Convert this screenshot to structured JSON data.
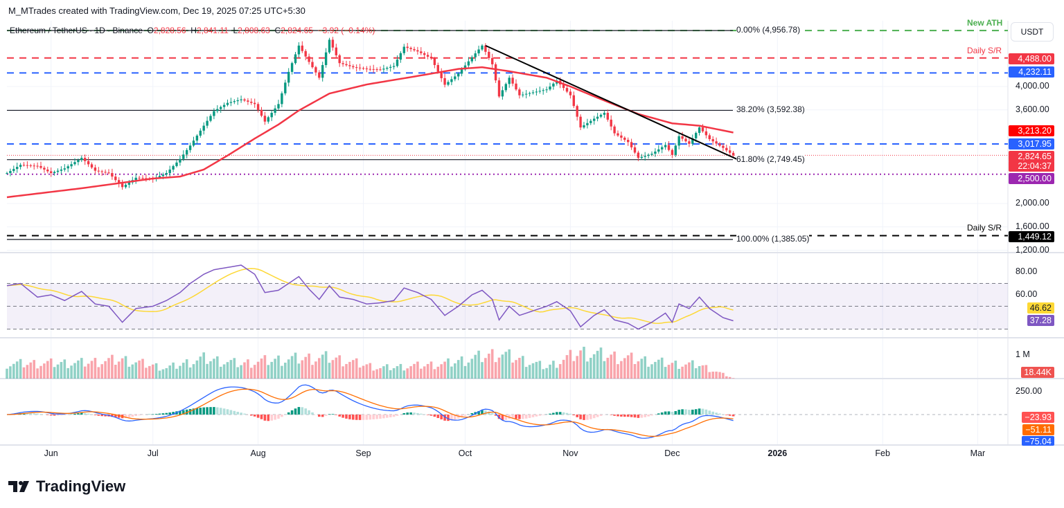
{
  "header": {
    "credit": "M_MTrades created with TradingView.com, Dec 19, 2025 07:25 UTC+5:30",
    "symbol": "Ethereum / TetherUS · 1D · Binance",
    "o_label": "O",
    "o": "2,828.56",
    "h_label": "H",
    "h": "2,841.11",
    "l_label": "L",
    "l": "2,808.63",
    "c_label": "C",
    "c": "2,824.65",
    "change": "−3.92 (−0.14%)"
  },
  "currency": "USDT",
  "footer": {
    "logo_text": "TradingView"
  },
  "colors": {
    "up": "#089981",
    "down": "#f23645",
    "ma": "#f23645",
    "rsi": "#7e57c2",
    "rsi_ma": "#fdd835",
    "macd": "#2962ff",
    "signal": "#ff6d00"
  },
  "annotations": {
    "new_ath": "New ATH",
    "daily_sr_top": "Daily S/R",
    "daily_sr_bottom": "Daily S/R"
  },
  "chart_data": {
    "type": "candlestick",
    "price_axis_ticks": [
      "4,000.00",
      "3,600.00",
      "2,000.00",
      "1,600.00",
      "1,200.00"
    ],
    "price_axis_values": [
      4000,
      3600,
      2000,
      1600,
      1200
    ],
    "x_ticks": [
      {
        "label": "Jun",
        "date": "2025-06-01"
      },
      {
        "label": "Jul",
        "date": "2025-07-01"
      },
      {
        "label": "Aug",
        "date": "2025-08-01"
      },
      {
        "label": "Sep",
        "date": "2025-09-01"
      },
      {
        "label": "Oct",
        "date": "2025-10-01"
      },
      {
        "label": "Nov",
        "date": "2025-11-01"
      },
      {
        "label": "Dec",
        "date": "2025-12-01"
      },
      {
        "label": "2026",
        "date": "2026-01-01"
      },
      {
        "label": "Feb",
        "date": "2026-02-01"
      },
      {
        "label": "Mar",
        "date": "2026-03-01"
      }
    ],
    "close": [
      [
        "2025-05-19",
        2520
      ],
      [
        "2025-05-23",
        2660
      ],
      [
        "2025-05-28",
        2640
      ],
      [
        "2025-06-01",
        2520
      ],
      [
        "2025-06-05",
        2600
      ],
      [
        "2025-06-10",
        2780
      ],
      [
        "2025-06-14",
        2560
      ],
      [
        "2025-06-18",
        2520
      ],
      [
        "2025-06-22",
        2280
      ],
      [
        "2025-06-26",
        2440
      ],
      [
        "2025-07-01",
        2420
      ],
      [
        "2025-07-05",
        2520
      ],
      [
        "2025-07-09",
        2760
      ],
      [
        "2025-07-12",
        2990
      ],
      [
        "2025-07-16",
        3330
      ],
      [
        "2025-07-19",
        3580
      ],
      [
        "2025-07-23",
        3720
      ],
      [
        "2025-07-27",
        3780
      ],
      [
        "2025-07-31",
        3700
      ],
      [
        "2025-08-03",
        3400
      ],
      [
        "2025-08-07",
        3700
      ],
      [
        "2025-08-10",
        4250
      ],
      [
        "2025-08-13",
        4700
      ],
      [
        "2025-08-16",
        4420
      ],
      [
        "2025-08-19",
        4150
      ],
      [
        "2025-08-22",
        4800
      ],
      [
        "2025-08-25",
        4400
      ],
      [
        "2025-08-29",
        4330
      ],
      [
        "2025-09-02",
        4300
      ],
      [
        "2025-09-06",
        4290
      ],
      [
        "2025-09-10",
        4350
      ],
      [
        "2025-09-13",
        4680
      ],
      [
        "2025-09-17",
        4600
      ],
      [
        "2025-09-21",
        4480
      ],
      [
        "2025-09-25",
        4030
      ],
      [
        "2025-09-29",
        4220
      ],
      [
        "2025-10-03",
        4500
      ],
      [
        "2025-10-06",
        4700
      ],
      [
        "2025-10-09",
        4380
      ],
      [
        "2025-10-11",
        3830
      ],
      [
        "2025-10-14",
        4150
      ],
      [
        "2025-10-17",
        3850
      ],
      [
        "2025-10-21",
        3900
      ],
      [
        "2025-10-25",
        3950
      ],
      [
        "2025-10-28",
        4100
      ],
      [
        "2025-11-01",
        3850
      ],
      [
        "2025-11-04",
        3300
      ],
      [
        "2025-11-08",
        3450
      ],
      [
        "2025-11-11",
        3550
      ],
      [
        "2025-11-14",
        3200
      ],
      [
        "2025-11-18",
        3050
      ],
      [
        "2025-11-21",
        2780
      ],
      [
        "2025-11-25",
        2850
      ],
      [
        "2025-11-29",
        3000
      ],
      [
        "2025-12-01",
        2830
      ],
      [
        "2025-12-03",
        3150
      ],
      [
        "2025-12-06",
        3020
      ],
      [
        "2025-12-09",
        3300
      ],
      [
        "2025-12-12",
        3100
      ],
      [
        "2025-12-16",
        2950
      ],
      [
        "2025-12-19",
        2824.65
      ]
    ],
    "ma": [
      [
        "2025-05-19",
        2107
      ],
      [
        "2025-06-10",
        2260
      ],
      [
        "2025-07-01",
        2426
      ],
      [
        "2025-07-09",
        2460
      ],
      [
        "2025-07-16",
        2580
      ],
      [
        "2025-07-23",
        2820
      ],
      [
        "2025-07-31",
        3110
      ],
      [
        "2025-08-07",
        3350
      ],
      [
        "2025-08-13",
        3590
      ],
      [
        "2025-08-22",
        3880
      ],
      [
        "2025-09-02",
        4035
      ],
      [
        "2025-09-17",
        4180
      ],
      [
        "2025-09-29",
        4300
      ],
      [
        "2025-10-06",
        4330
      ],
      [
        "2025-10-14",
        4260
      ],
      [
        "2025-10-25",
        4150
      ],
      [
        "2025-11-01",
        4000
      ],
      [
        "2025-11-11",
        3760
      ],
      [
        "2025-11-21",
        3530
      ],
      [
        "2025-12-01",
        3370
      ],
      [
        "2025-12-09",
        3330
      ],
      [
        "2025-12-19",
        3213.2
      ]
    ],
    "rsi": [
      [
        "2025-05-19",
        68
      ],
      [
        "2025-05-23",
        70
      ],
      [
        "2025-05-28",
        58
      ],
      [
        "2025-06-01",
        60
      ],
      [
        "2025-06-05",
        55
      ],
      [
        "2025-06-10",
        63
      ],
      [
        "2025-06-14",
        52
      ],
      [
        "2025-06-18",
        50
      ],
      [
        "2025-06-22",
        36
      ],
      [
        "2025-06-26",
        48
      ],
      [
        "2025-07-01",
        50
      ],
      [
        "2025-07-05",
        55
      ],
      [
        "2025-07-09",
        62
      ],
      [
        "2025-07-12",
        70
      ],
      [
        "2025-07-16",
        78
      ],
      [
        "2025-07-19",
        82
      ],
      [
        "2025-07-23",
        84
      ],
      [
        "2025-07-27",
        86
      ],
      [
        "2025-07-31",
        78
      ],
      [
        "2025-08-03",
        62
      ],
      [
        "2025-08-07",
        64
      ],
      [
        "2025-08-10",
        70
      ],
      [
        "2025-08-13",
        76
      ],
      [
        "2025-08-16",
        65
      ],
      [
        "2025-08-19",
        56
      ],
      [
        "2025-08-22",
        68
      ],
      [
        "2025-08-25",
        58
      ],
      [
        "2025-08-29",
        56
      ],
      [
        "2025-09-02",
        52
      ],
      [
        "2025-09-06",
        53
      ],
      [
        "2025-09-10",
        55
      ],
      [
        "2025-09-13",
        66
      ],
      [
        "2025-09-17",
        62
      ],
      [
        "2025-09-21",
        56
      ],
      [
        "2025-09-25",
        42
      ],
      [
        "2025-09-29",
        50
      ],
      [
        "2025-10-03",
        60
      ],
      [
        "2025-10-06",
        64
      ],
      [
        "2025-10-09",
        56
      ],
      [
        "2025-10-11",
        38
      ],
      [
        "2025-10-14",
        50
      ],
      [
        "2025-10-17",
        42
      ],
      [
        "2025-10-21",
        46
      ],
      [
        "2025-10-25",
        50
      ],
      [
        "2025-10-28",
        54
      ],
      [
        "2025-11-01",
        46
      ],
      [
        "2025-11-04",
        32
      ],
      [
        "2025-11-08",
        42
      ],
      [
        "2025-11-11",
        47
      ],
      [
        "2025-11-14",
        38
      ],
      [
        "2025-11-18",
        35
      ],
      [
        "2025-11-21",
        30
      ],
      [
        "2025-11-25",
        36
      ],
      [
        "2025-11-29",
        44
      ],
      [
        "2025-12-01",
        36
      ],
      [
        "2025-12-03",
        52
      ],
      [
        "2025-12-06",
        48
      ],
      [
        "2025-12-09",
        58
      ],
      [
        "2025-12-12",
        48
      ],
      [
        "2025-12-16",
        40
      ],
      [
        "2025-12-19",
        37.28
      ]
    ],
    "rsi_axis": {
      "ticks": [
        "80.00",
        "60.00"
      ],
      "values": [
        80,
        60
      ],
      "bands": [
        70,
        50,
        30
      ]
    },
    "volume_k": [
      [
        "2025-05-19",
        700
      ],
      [
        "2025-06-10",
        750
      ],
      [
        "2025-06-22",
        900
      ],
      [
        "2025-07-05",
        500
      ],
      [
        "2025-07-16",
        950
      ],
      [
        "2025-07-27",
        700
      ],
      [
        "2025-08-03",
        850
      ],
      [
        "2025-08-13",
        950
      ],
      [
        "2025-08-22",
        1000
      ],
      [
        "2025-09-06",
        500
      ],
      [
        "2025-09-25",
        700
      ],
      [
        "2025-10-11",
        1200
      ],
      [
        "2025-10-25",
        550
      ],
      [
        "2025-11-04",
        1250
      ],
      [
        "2025-11-21",
        900
      ],
      [
        "2025-12-01",
        700
      ],
      [
        "2025-12-09",
        650
      ],
      [
        "2025-12-19",
        18.44
      ]
    ],
    "volume_axis": {
      "tick": "1 M"
    },
    "macd_axis": {
      "tick": "250.00"
    },
    "last_values": {
      "rsi_ma": "46.62",
      "rsi": "37.28",
      "volume": "18.44K",
      "histogram": "−23.93",
      "signal": "−51.11",
      "macd": "−75.04"
    },
    "levels": [
      {
        "name": "new-ath",
        "price": 4956.78,
        "color": "#4caf50",
        "style": "dashed"
      },
      {
        "name": "daily-sr-top",
        "price": 4488.0,
        "label": "4,488.00",
        "color": "#f23645",
        "style": "dashed"
      },
      {
        "name": "support-blue-upper",
        "price": 4232.11,
        "label": "4,232.11",
        "color": "#2962ff",
        "style": "dashed"
      },
      {
        "name": "support-blue-lower",
        "price": 3017.95,
        "label": "3,017.95",
        "color": "#2962ff",
        "style": "dashed"
      },
      {
        "name": "psych-2500",
        "price": 2500.0,
        "label": "2,500.00",
        "color": "#9c27b0",
        "style": "dotted"
      },
      {
        "name": "daily-sr-bottom",
        "price": 1449.12,
        "label": "1,449.12",
        "color": "#000000",
        "style": "dashed"
      }
    ],
    "fib": [
      {
        "label": "0.00% (4,956.78)",
        "price": 4956.78
      },
      {
        "label": "38.20% (3,592.38)",
        "price": 3592.38
      },
      {
        "label": "61.80% (2,749.45)",
        "price": 2749.45
      },
      {
        "label": "100.00% (1,385.05)",
        "price": 1385.05
      }
    ],
    "ma_last": {
      "label": "3,213.20",
      "color": "#ff0000"
    },
    "last_price": {
      "label": "2,824.65",
      "countdown": "22:04:37",
      "color": "#f23645"
    },
    "trendline": [
      [
        "2025-10-07",
        4700
      ],
      [
        "2025-12-20",
        2760
      ]
    ]
  }
}
